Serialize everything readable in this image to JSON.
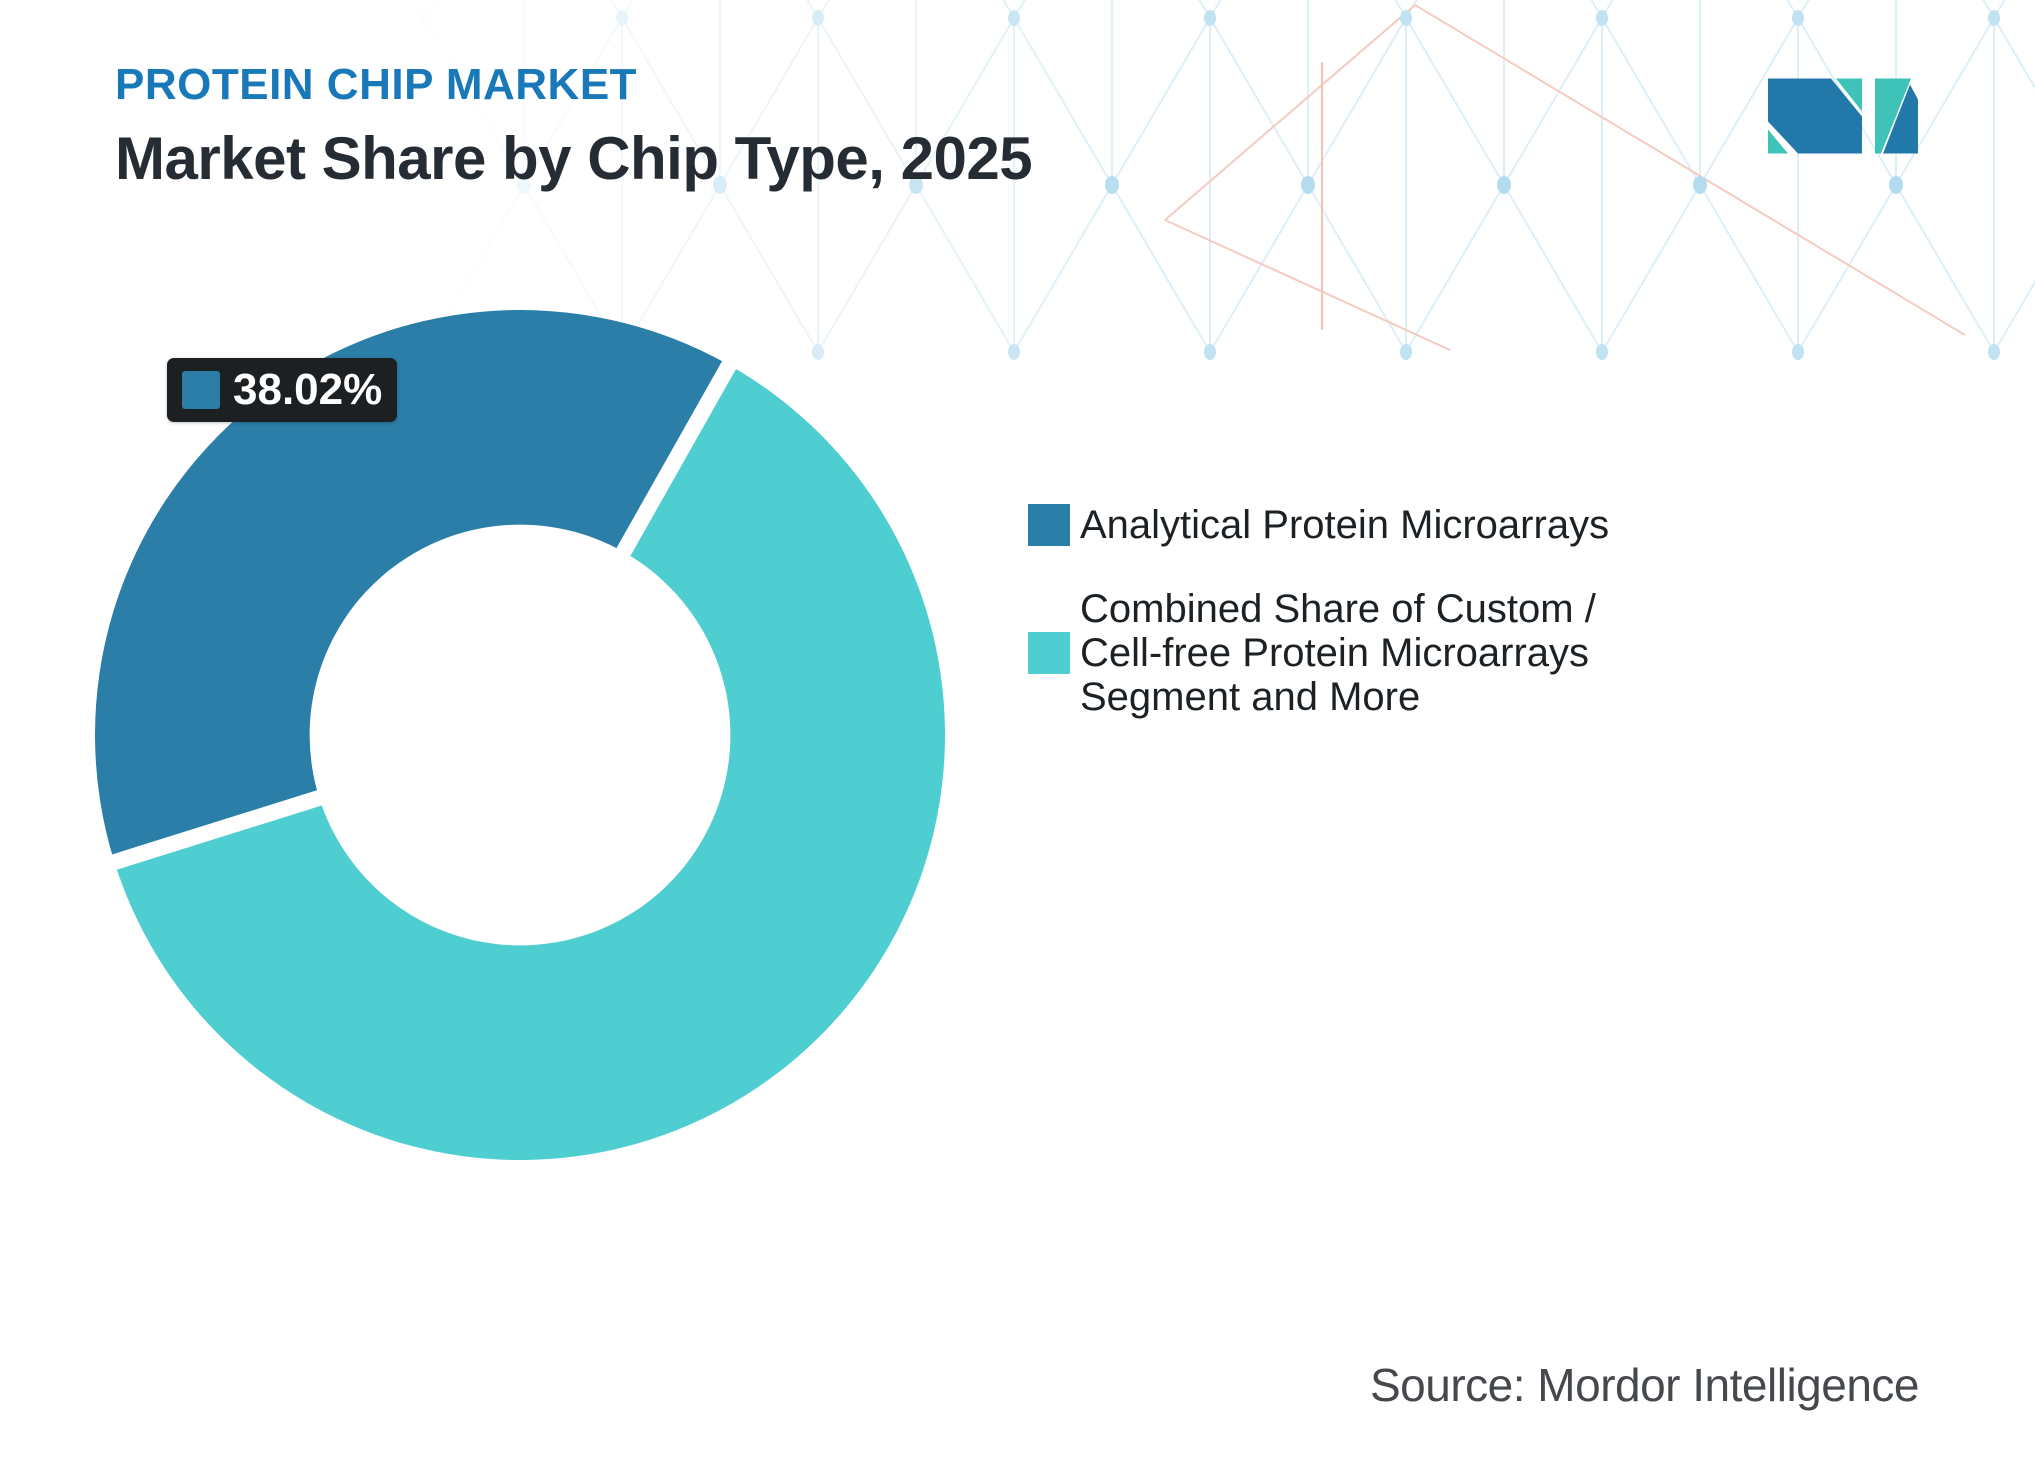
{
  "header": {
    "eyebrow": "PROTEIN CHIP MARKET",
    "title": "Market Share by Chip Type, 2025",
    "eyebrow_color": "#1878b8"
  },
  "chart_data": {
    "type": "pie",
    "subtype": "donut",
    "title": "Market Share by Chip Type, 2025",
    "labels": [
      "Analytical Protein Microarrays",
      "Combined Share of Custom / Cell-free Protein Microarrays Segment and More"
    ],
    "values": [
      38.02,
      61.98
    ],
    "colors": [
      "#2b7ea8",
      "#4fced2"
    ],
    "inner_radius_ratio": 0.495,
    "outer_radius_px": 425,
    "start_angle_deg": 252.6,
    "gap_stroke_px": 16,
    "data_label": {
      "slice": 0,
      "text": "38.02%"
    },
    "legend_position": "right"
  },
  "legend": {
    "items": [
      {
        "color": "#2b7ea8",
        "lines": [
          "Analytical Protein Microarrays"
        ]
      },
      {
        "color": "#4fced2",
        "lines": [
          "Combined Share of Custom /",
          "Cell-free Protein Microarrays",
          "Segment and More"
        ]
      }
    ]
  },
  "footer": {
    "source": "Source: Mordor Intelligence"
  },
  "brand": {
    "logo_blue": "#2278a9",
    "logo_teal": "#3fc2b7"
  },
  "pattern_colors": {
    "line": "#d9ecf6",
    "dot": "#b7ddf0",
    "dot_accent": "#a8d7ee",
    "red_line": "#f2c3b7",
    "orange_line": "#f0b9a6"
  }
}
